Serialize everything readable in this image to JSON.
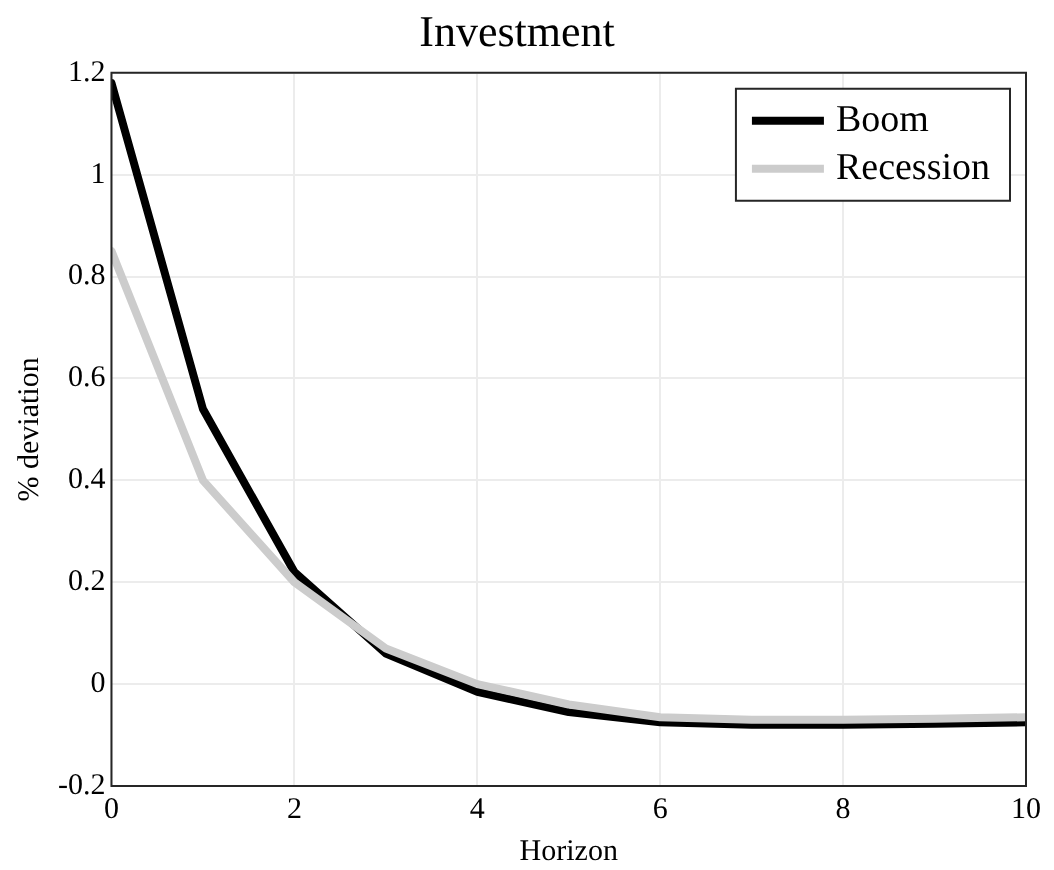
{
  "chart_data": {
    "type": "line",
    "title": "Investment",
    "xlabel": "Horizon",
    "ylabel": "% deviation",
    "x": [
      0,
      1,
      2,
      3,
      4,
      5,
      6,
      7,
      8,
      9,
      10
    ],
    "series": [
      {
        "name": "Boom",
        "color": "#000000",
        "values": [
          1.18,
          0.54,
          0.22,
          0.06,
          -0.015,
          -0.055,
          -0.075,
          -0.08,
          -0.08,
          -0.078,
          -0.075
        ]
      },
      {
        "name": "Recession",
        "color": "#cccccc",
        "values": [
          0.85,
          0.4,
          0.2,
          0.07,
          0.0,
          -0.04,
          -0.065,
          -0.07,
          -0.07,
          -0.068,
          -0.065
        ]
      }
    ],
    "xlim": [
      0,
      10
    ],
    "xticks": [
      0,
      2,
      4,
      6,
      8,
      10
    ],
    "ylim": [
      -0.2,
      1.2
    ],
    "yticks": [
      -0.2,
      0,
      0.2,
      0.4,
      0.6,
      0.8,
      1,
      1.2
    ],
    "grid": true,
    "legend": "top right",
    "marker": "none",
    "line_style": "solid"
  }
}
